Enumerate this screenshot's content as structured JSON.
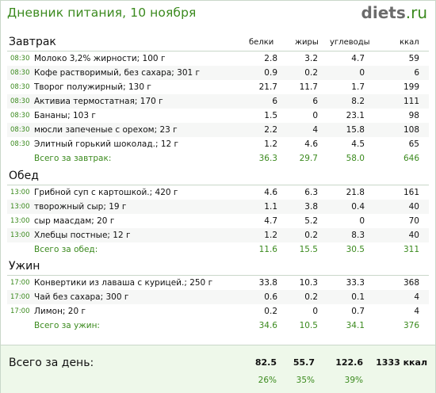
{
  "title": "Дневник питания, 10 ноября",
  "logo": {
    "main": "diets",
    "suffix": ".ru"
  },
  "columns": {
    "protein": "белки",
    "fat": "жиры",
    "carbs": "углеводы",
    "kcal": "ккал"
  },
  "sections": [
    {
      "name": "Завтрак",
      "items": [
        {
          "time": "08:30",
          "name": "Молоко 3,2% жирности; 100 г",
          "protein": "2.8",
          "fat": "3.2",
          "carbs": "4.7",
          "kcal": "59"
        },
        {
          "time": "08:30",
          "name": "Кофе растворимый, без сахара; 301 г",
          "protein": "0.9",
          "fat": "0.2",
          "carbs": "0",
          "kcal": "6"
        },
        {
          "time": "08:30",
          "name": "Творог полужирный; 130 г",
          "protein": "21.7",
          "fat": "11.7",
          "carbs": "1.7",
          "kcal": "199"
        },
        {
          "time": "08:30",
          "name": "Активиа термостатная; 170 г",
          "protein": "6",
          "fat": "6",
          "carbs": "8.2",
          "kcal": "111"
        },
        {
          "time": "08:30",
          "name": "Бананы; 103 г",
          "protein": "1.5",
          "fat": "0",
          "carbs": "23.1",
          "kcal": "98"
        },
        {
          "time": "08:30",
          "name": "мюсли запеченые с орехом; 23 г",
          "protein": "2.2",
          "fat": "4",
          "carbs": "15.8",
          "kcal": "108"
        },
        {
          "time": "08:30",
          "name": "Элитный горький шоколад.; 12 г",
          "protein": "1.2",
          "fat": "4.6",
          "carbs": "4.5",
          "kcal": "65"
        }
      ],
      "total": {
        "label": "Всего за завтрак:",
        "protein": "36.3",
        "fat": "29.7",
        "carbs": "58.0",
        "kcal": "646"
      }
    },
    {
      "name": "Обед",
      "items": [
        {
          "time": "13:00",
          "name": "Грибной суп с картошкой.; 420 г",
          "protein": "4.6",
          "fat": "6.3",
          "carbs": "21.8",
          "kcal": "161"
        },
        {
          "time": "13:00",
          "name": "творожный сыр; 19 г",
          "protein": "1.1",
          "fat": "3.8",
          "carbs": "0.4",
          "kcal": "40"
        },
        {
          "time": "13:00",
          "name": "сыр маасдам; 20 г",
          "protein": "4.7",
          "fat": "5.2",
          "carbs": "0",
          "kcal": "70"
        },
        {
          "time": "13:00",
          "name": "Хлебцы постные; 12 г",
          "protein": "1.2",
          "fat": "0.2",
          "carbs": "8.3",
          "kcal": "40"
        }
      ],
      "total": {
        "label": "Всего за обед:",
        "protein": "11.6",
        "fat": "15.5",
        "carbs": "30.5",
        "kcal": "311"
      }
    },
    {
      "name": "Ужин",
      "items": [
        {
          "time": "17:00",
          "name": "Конвертики из лаваша с курицей.; 250 г",
          "protein": "33.8",
          "fat": "10.3",
          "carbs": "33.3",
          "kcal": "368"
        },
        {
          "time": "17:00",
          "name": "Чай без сахара; 300 г",
          "protein": "0.6",
          "fat": "0.2",
          "carbs": "0.1",
          "kcal": "4"
        },
        {
          "time": "17:00",
          "name": "Лимон; 20 г",
          "protein": "0.2",
          "fat": "0",
          "carbs": "0.7",
          "kcal": "4"
        }
      ],
      "total": {
        "label": "Всего за ужин:",
        "protein": "34.6",
        "fat": "10.5",
        "carbs": "34.1",
        "kcal": "376"
      }
    }
  ],
  "day_total": {
    "label": "Всего за день:",
    "protein": "82.5",
    "fat": "55.7",
    "carbs": "122.6",
    "kcal": "1333 ккал",
    "protein_pct": "26%",
    "fat_pct": "35%",
    "carbs_pct": "39%"
  }
}
